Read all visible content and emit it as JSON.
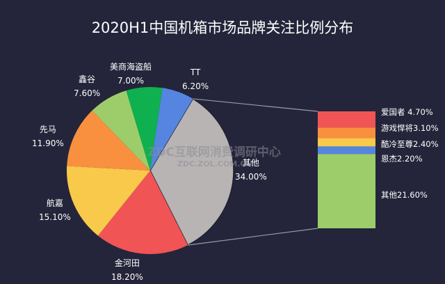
{
  "title": "2020H1中国机箱市场品牌关注比例分布",
  "watermark": {
    "line1": "ZDC互联网消费调研中心",
    "line2": "ZDC.ZOL.COM.CN"
  },
  "chart_data": {
    "type": "pie",
    "subtype": "bar-of-pie",
    "title": "2020H1中国机箱市场品牌关注比例分布",
    "pie": {
      "categories": [
        "其他",
        "金河田",
        "航嘉",
        "先马",
        "鑫谷",
        "美商海盗船",
        "TT"
      ],
      "values": [
        34.0,
        18.2,
        15.1,
        11.9,
        7.6,
        7.0,
        6.2
      ],
      "labels": [
        "34.00%",
        "18.20%",
        "15.10%",
        "11.90%",
        "7.60%",
        "7.00%",
        "6.20%"
      ],
      "colors": [
        "#b8b4b4",
        "#f05455",
        "#f8c94a",
        "#f8903f",
        "#9dcd6b",
        "#0fb04f",
        "#5585e0"
      ]
    },
    "bar": {
      "parent": "其他",
      "categories": [
        "爱国者",
        "游戏悍将",
        "酷冷至尊",
        "恩杰",
        "其他"
      ],
      "values": [
        4.7,
        3.1,
        2.4,
        2.2,
        21.6
      ],
      "labels": [
        "爱国者 4.70%",
        "游戏悍将3.10%",
        "酷冷至尊2.40%",
        "恩杰2.20%",
        "其他21.60%"
      ],
      "colors": [
        "#f05455",
        "#f8903f",
        "#f8c94a",
        "#5585e0",
        "#9dcd6b"
      ]
    },
    "legend": "none",
    "grid": false
  },
  "pie_labels": [
    {
      "name": "其他",
      "value": "34.00%"
    },
    {
      "name": "金河田",
      "value": "18.20%"
    },
    {
      "name": "航嘉",
      "value": "15.10%"
    },
    {
      "name": "先马",
      "value": "11.90%"
    },
    {
      "name": "鑫谷",
      "value": "7.60%"
    },
    {
      "name": "美商海盗船",
      "value": "7.00%"
    },
    {
      "name": "TT",
      "value": "6.20%"
    }
  ],
  "bar_labels": [
    {
      "text": "爱国者 4.70%"
    },
    {
      "text": "游戏悍将3.10%"
    },
    {
      "text": "酷冷至尊2.40%"
    },
    {
      "text": "恩杰2.20%"
    },
    {
      "text": "其他21.60%"
    }
  ]
}
